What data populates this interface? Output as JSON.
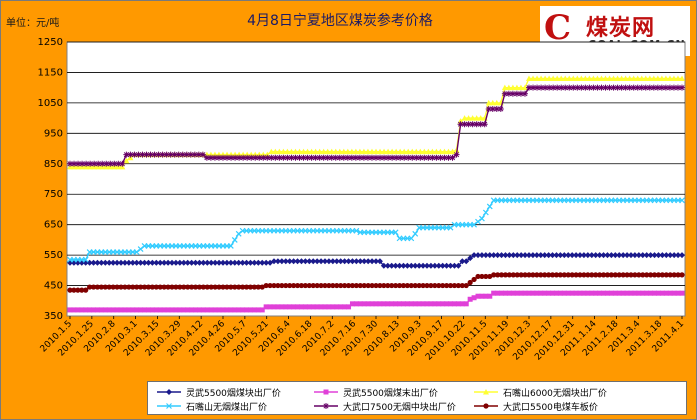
{
  "chart_data": {
    "type": "line",
    "title": "4月8日宁夏地区煤炭参考价格",
    "ylabel": "单位：元/吨",
    "ylim": [
      350,
      1250
    ],
    "yticks": [
      350,
      450,
      550,
      650,
      750,
      850,
      950,
      1050,
      1150,
      1250
    ],
    "xticks": [
      "2010.1.5",
      "2010.1.25",
      "2010.2.8",
      "2010.3.1",
      "2010.3.15",
      "2010.3.29",
      "2010.4.12",
      "2010.4.26",
      "2010.5.7",
      "2010.5.21",
      "2010.6.4",
      "2010.6.18",
      "2010.7.2",
      "2010.7.16",
      "2010.7.30",
      "2010.8.13",
      "2010.9.3",
      "2010.9.17",
      "2010.10.22",
      "2010.11.5",
      "2010.11.19",
      "2010.12.3",
      "2010.12.17",
      "2010.12.31",
      "2011.1.14",
      "2011.2.18",
      "2011.3.4",
      "2011.3.18",
      "2011.4.1"
    ],
    "grid": true,
    "legend": "bottom",
    "series": [
      {
        "name": "灵武5500烟煤块出厂价",
        "color": "#1a1a8c",
        "marker": "diamond",
        "values": [
          525,
          525,
          525,
          525,
          525,
          525,
          525,
          525,
          525,
          525,
          525,
          525,
          525,
          525,
          525,
          525,
          525,
          525,
          525,
          525,
          525,
          525,
          525,
          525,
          525,
          525,
          525,
          525,
          525,
          525,
          525,
          525,
          525,
          525,
          525,
          525,
          525,
          525,
          525,
          525,
          525,
          525,
          525,
          525,
          525,
          525,
          525,
          525,
          525,
          525,
          525,
          525,
          530,
          530,
          530,
          530,
          530,
          530,
          530,
          530,
          530,
          530,
          530,
          530,
          530,
          530,
          530,
          530,
          530,
          530,
          530,
          530,
          530,
          530,
          530,
          530,
          530,
          530,
          530,
          530,
          515,
          515,
          515,
          515,
          515,
          515,
          515,
          515,
          515,
          515,
          515,
          515,
          515,
          515,
          515,
          515,
          515,
          515,
          515,
          515,
          530,
          530,
          540,
          550,
          550,
          550,
          550,
          550,
          550,
          550,
          550,
          550,
          550,
          550,
          550,
          550,
          550,
          550,
          550,
          550,
          550,
          550,
          550,
          550,
          550,
          550,
          550,
          550,
          550,
          550,
          550,
          550,
          550,
          550,
          550,
          550,
          550,
          550,
          550,
          550,
          550,
          550,
          550,
          550,
          550,
          550,
          550,
          550,
          550,
          550,
          550,
          550,
          550,
          550,
          550,
          550,
          550
        ]
      },
      {
        "name": "灵武5500烟煤末出厂价",
        "color": "#e040d8",
        "marker": "square",
        "values": [
          370,
          370,
          370,
          370,
          370,
          370,
          370,
          370,
          370,
          370,
          370,
          370,
          370,
          370,
          370,
          370,
          370,
          370,
          370,
          370,
          370,
          370,
          370,
          370,
          370,
          370,
          370,
          370,
          370,
          370,
          370,
          370,
          370,
          370,
          370,
          370,
          370,
          370,
          370,
          370,
          370,
          370,
          370,
          370,
          370,
          370,
          370,
          370,
          370,
          370,
          380,
          380,
          380,
          380,
          380,
          380,
          380,
          380,
          380,
          380,
          380,
          380,
          380,
          380,
          380,
          380,
          380,
          380,
          380,
          380,
          380,
          380,
          390,
          390,
          390,
          390,
          390,
          390,
          390,
          390,
          390,
          390,
          390,
          390,
          390,
          390,
          390,
          390,
          390,
          390,
          390,
          390,
          390,
          390,
          390,
          390,
          390,
          390,
          390,
          390,
          390,
          390,
          405,
          410,
          415,
          415,
          415,
          415,
          425,
          425,
          425,
          425,
          425,
          425,
          425,
          425,
          425,
          425,
          425,
          425,
          425,
          425,
          425,
          425,
          425,
          425,
          425,
          425,
          425,
          425,
          425,
          425,
          425,
          425,
          425,
          425,
          425,
          425,
          425,
          425,
          425,
          425,
          425,
          425,
          425,
          425,
          425,
          425,
          425,
          425,
          425,
          425,
          425,
          425,
          425,
          425,
          425
        ]
      },
      {
        "name": "石嘴山6000无烟块出厂价",
        "color": "#ffff33",
        "marker": "triangle",
        "values": [
          840,
          840,
          840,
          840,
          840,
          840,
          840,
          840,
          840,
          840,
          840,
          840,
          840,
          840,
          860,
          870,
          880,
          880,
          880,
          880,
          880,
          880,
          880,
          880,
          880,
          880,
          880,
          880,
          880,
          880,
          880,
          880,
          880,
          880,
          880,
          880,
          880,
          880,
          880,
          880,
          880,
          880,
          880,
          880,
          880,
          880,
          880,
          880,
          880,
          880,
          890,
          890,
          890,
          890,
          890,
          890,
          890,
          890,
          890,
          890,
          890,
          890,
          890,
          890,
          890,
          890,
          890,
          890,
          890,
          890,
          890,
          890,
          890,
          890,
          890,
          890,
          890,
          890,
          890,
          890,
          890,
          890,
          890,
          890,
          890,
          890,
          890,
          890,
          890,
          890,
          890,
          890,
          890,
          890,
          890,
          890,
          895,
          990,
          1000,
          1000,
          1000,
          1000,
          1000,
          1000,
          1050,
          1050,
          1050,
          1050,
          1100,
          1100,
          1100,
          1100,
          1100,
          1100,
          1130,
          1130,
          1130,
          1130,
          1130,
          1130,
          1130,
          1130,
          1130,
          1130,
          1130,
          1130,
          1130,
          1130,
          1130,
          1130,
          1130,
          1130,
          1130,
          1130,
          1130,
          1130,
          1130,
          1130,
          1130,
          1130,
          1130,
          1130,
          1130,
          1130,
          1130,
          1130,
          1130,
          1130,
          1130,
          1130,
          1130,
          1130,
          1130
        ]
      },
      {
        "name": "石嘴山无烟煤出厂价",
        "color": "#33ccff",
        "marker": "x",
        "values": [
          535,
          535,
          535,
          535,
          535,
          560,
          560,
          560,
          560,
          560,
          560,
          560,
          560,
          560,
          560,
          560,
          560,
          560,
          570,
          580,
          580,
          580,
          580,
          580,
          580,
          580,
          580,
          580,
          580,
          580,
          580,
          580,
          580,
          580,
          580,
          580,
          580,
          580,
          580,
          580,
          580,
          580,
          600,
          620,
          630,
          630,
          630,
          630,
          630,
          630,
          630,
          630,
          630,
          630,
          630,
          630,
          630,
          630,
          630,
          630,
          630,
          630,
          630,
          630,
          630,
          630,
          630,
          630,
          630,
          630,
          630,
          630,
          630,
          630,
          625,
          625,
          625,
          625,
          625,
          625,
          625,
          625,
          625,
          625,
          605,
          605,
          605,
          605,
          620,
          640,
          640,
          640,
          640,
          640,
          640,
          640,
          640,
          640,
          650,
          650,
          650,
          650,
          650,
          650,
          660,
          670,
          690,
          710,
          730,
          730,
          730,
          730,
          730,
          730,
          730,
          730,
          730,
          730,
          730,
          730,
          730,
          730,
          730,
          730,
          730,
          730,
          730,
          730,
          730,
          730,
          730,
          730,
          730,
          730,
          730,
          730,
          730,
          730,
          730,
          730,
          730,
          730,
          730,
          730,
          730,
          730,
          730,
          730,
          730,
          730,
          730,
          730,
          730,
          730,
          730,
          730,
          730
        ]
      },
      {
        "name": "大武口7500无烟中块出厂价",
        "color": "#660066",
        "marker": "star",
        "values": [
          850,
          850,
          850,
          850,
          850,
          850,
          850,
          850,
          850,
          850,
          850,
          850,
          850,
          850,
          880,
          880,
          880,
          880,
          880,
          880,
          880,
          880,
          880,
          880,
          880,
          880,
          880,
          880,
          880,
          880,
          880,
          880,
          880,
          880,
          870,
          870,
          870,
          870,
          870,
          870,
          870,
          870,
          870,
          870,
          870,
          870,
          870,
          870,
          870,
          870,
          870,
          870,
          870,
          870,
          870,
          870,
          870,
          870,
          870,
          870,
          870,
          870,
          870,
          870,
          870,
          870,
          870,
          870,
          870,
          870,
          870,
          870,
          870,
          870,
          870,
          870,
          870,
          870,
          870,
          870,
          870,
          870,
          870,
          870,
          870,
          870,
          870,
          870,
          870,
          870,
          870,
          870,
          870,
          870,
          870,
          870,
          880,
          980,
          980,
          980,
          980,
          980,
          980,
          980,
          1030,
          1030,
          1030,
          1030,
          1080,
          1080,
          1080,
          1080,
          1080,
          1080,
          1100,
          1100,
          1100,
          1100,
          1100,
          1100,
          1100,
          1100,
          1100,
          1100,
          1100,
          1100,
          1100,
          1100,
          1100,
          1100,
          1100,
          1100,
          1100,
          1100,
          1100,
          1100,
          1100,
          1100,
          1100,
          1100,
          1100,
          1100,
          1100,
          1100,
          1100,
          1100,
          1100,
          1100,
          1100,
          1100,
          1100,
          1100,
          1100
        ]
      },
      {
        "name": "大武口5500电煤车板价",
        "color": "#800000",
        "marker": "circle",
        "values": [
          435,
          435,
          435,
          435,
          435,
          445,
          445,
          445,
          445,
          445,
          445,
          445,
          445,
          445,
          445,
          445,
          445,
          445,
          445,
          445,
          445,
          445,
          445,
          445,
          445,
          445,
          445,
          445,
          445,
          445,
          445,
          445,
          445,
          445,
          445,
          445,
          445,
          445,
          445,
          445,
          445,
          445,
          445,
          445,
          445,
          445,
          445,
          445,
          445,
          445,
          450,
          450,
          450,
          450,
          450,
          450,
          450,
          450,
          450,
          450,
          450,
          450,
          450,
          450,
          450,
          450,
          450,
          450,
          450,
          450,
          450,
          450,
          450,
          450,
          450,
          450,
          450,
          450,
          450,
          450,
          450,
          450,
          450,
          450,
          450,
          450,
          450,
          450,
          450,
          450,
          450,
          450,
          450,
          450,
          450,
          450,
          450,
          450,
          450,
          450,
          450,
          450,
          460,
          470,
          480,
          480,
          480,
          480,
          485,
          485,
          485,
          485,
          485,
          485,
          485,
          485,
          485,
          485,
          485,
          485,
          485,
          485,
          485,
          485,
          485,
          485,
          485,
          485,
          485,
          485,
          485,
          485,
          485,
          485,
          485,
          485,
          485,
          485,
          485,
          485,
          485,
          485,
          485,
          485,
          485,
          485,
          485,
          485,
          485,
          485,
          485,
          485,
          485,
          485,
          485,
          485,
          485
        ]
      }
    ]
  },
  "logo": {
    "mark": "C",
    "cn": "煤炭网",
    "en": "COAL.COM.CN"
  },
  "colors": {
    "background": "#ff9900",
    "plot": "#ffffff",
    "grid": "#000000"
  }
}
